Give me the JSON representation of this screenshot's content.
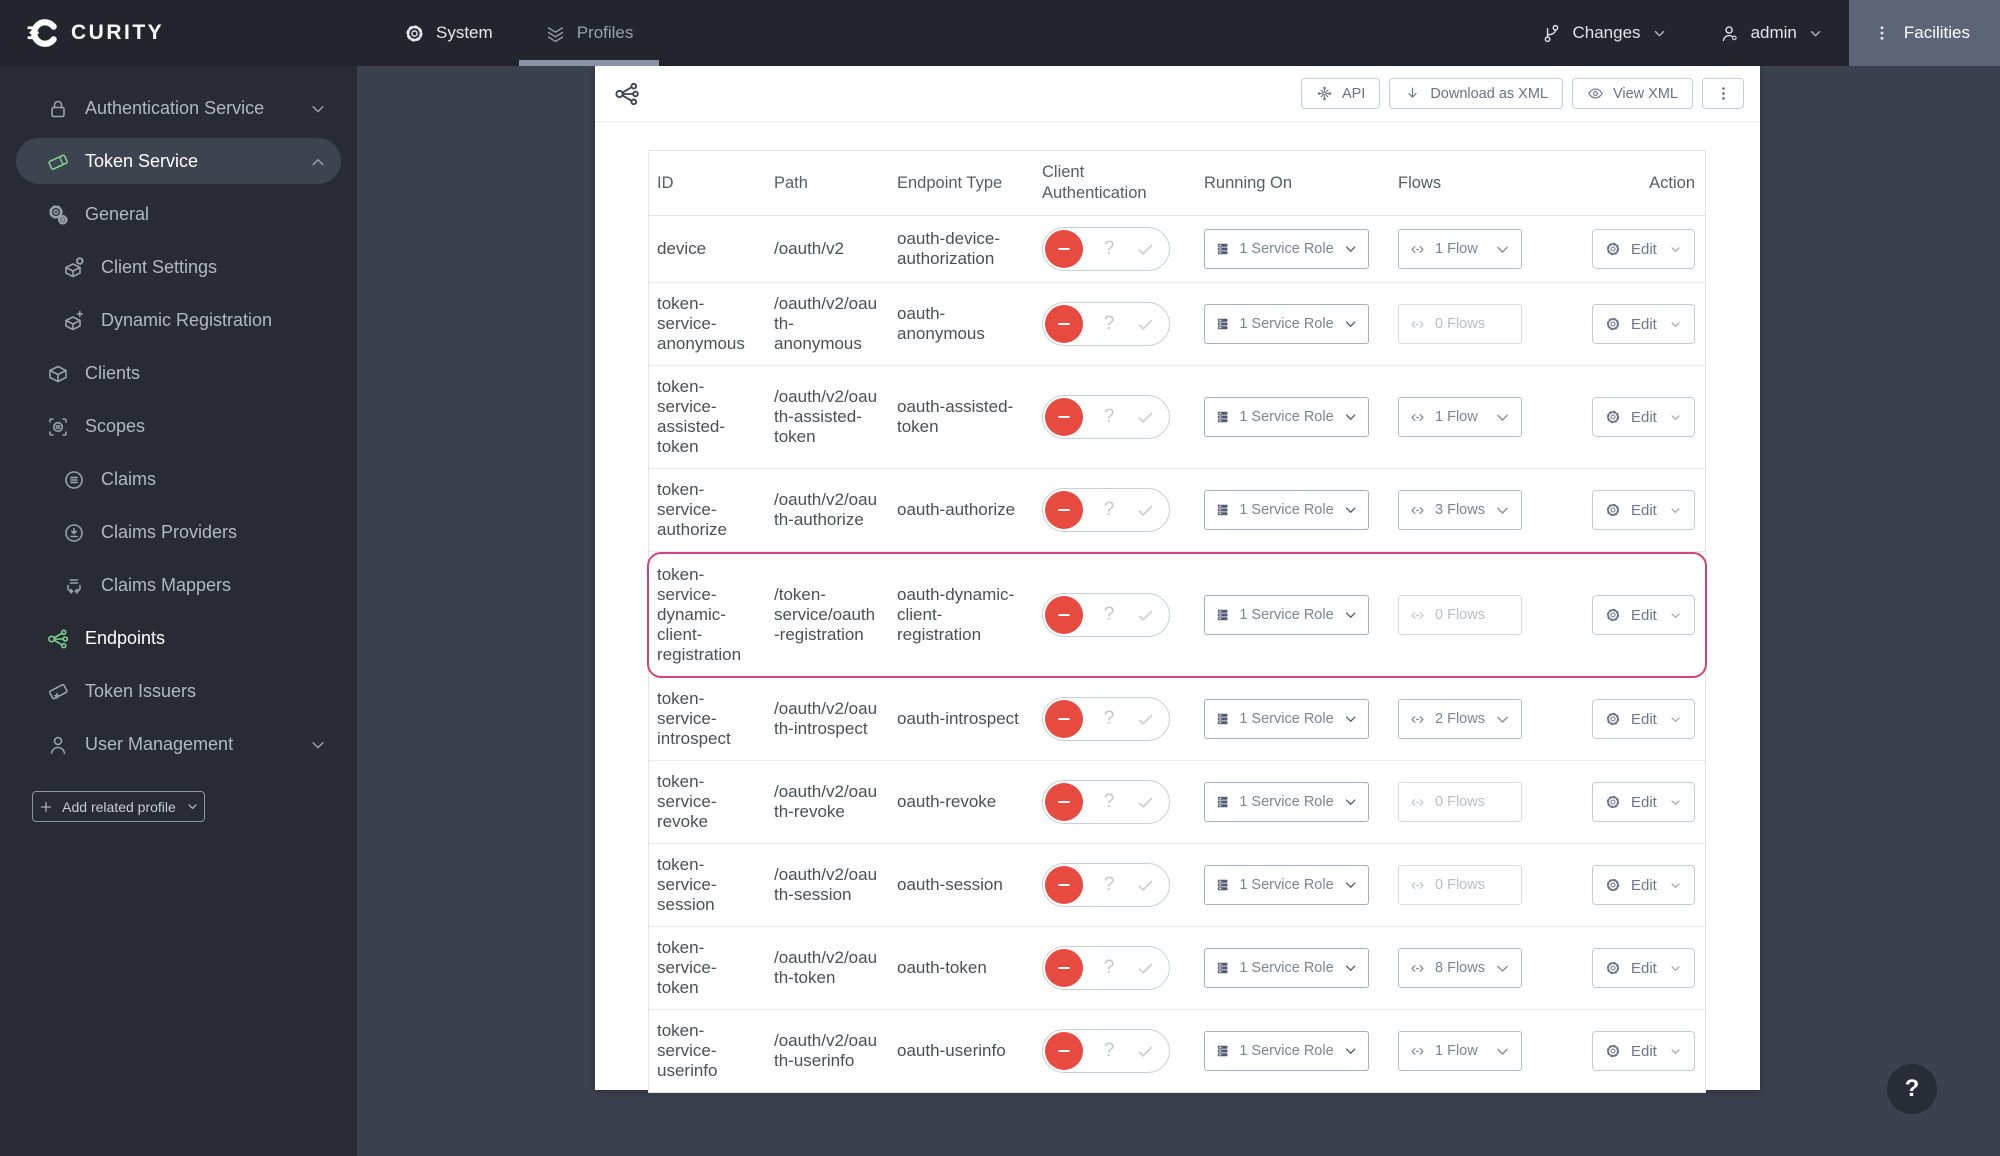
{
  "colors": {
    "topbar_bg": "#22252e",
    "sidebar_bg": "#282b34",
    "main_bg": "#3c4150",
    "facilities_bg": "#5c6476",
    "accent_green": "#7bd28f",
    "danger_red": "#e74b40",
    "highlight_pink": "#d0457e"
  },
  "topbar": {
    "logo_text": "CURITY",
    "nav": [
      {
        "label": "System",
        "icon": "gear-icon",
        "active": false
      },
      {
        "label": "Profiles",
        "icon": "profiles-icon",
        "active": true
      }
    ],
    "changes": {
      "label": "Changes",
      "icon": "git-branch-icon"
    },
    "user": {
      "label": "admin",
      "icon": "user-gear-icon"
    },
    "facilities": {
      "label": "Facilities",
      "icon": "kebab-icon"
    }
  },
  "sidebar": {
    "items": [
      {
        "label": "Authentication Service",
        "icon": "lock-icon",
        "indent": 0,
        "chevron": "down"
      },
      {
        "label": "Token Service",
        "icon": "ticket-icon",
        "icon_color": "green",
        "indent": 0,
        "chevron": "up",
        "active": true
      },
      {
        "label": "General",
        "icon": "gears-icon",
        "indent": 0
      },
      {
        "label": "Client Settings",
        "icon": "box-gear-icon",
        "indent": 1
      },
      {
        "label": "Dynamic Registration",
        "icon": "box-plus-icon",
        "indent": 1
      },
      {
        "label": "Clients",
        "icon": "box-icon",
        "indent": 0
      },
      {
        "label": "Scopes",
        "icon": "scopes-icon",
        "indent": 0
      },
      {
        "label": "Claims",
        "icon": "claims-icon",
        "indent": 1
      },
      {
        "label": "Claims Providers",
        "icon": "claims-providers-icon",
        "indent": 1
      },
      {
        "label": "Claims Mappers",
        "icon": "claims-mappers-icon",
        "indent": 1
      },
      {
        "label": "Endpoints",
        "icon": "endpoints-icon",
        "icon_color": "green",
        "indent": 0,
        "current": true
      },
      {
        "label": "Token Issuers",
        "icon": "ticket-plus-icon",
        "indent": 0
      },
      {
        "label": "User Management",
        "icon": "person-icon",
        "indent": 0,
        "chevron": "down"
      }
    ],
    "add_related_profile": {
      "label": "Add related profile",
      "icon": "plus-icon"
    }
  },
  "content": {
    "header_icon": "endpoints-icon",
    "actions": [
      {
        "label": "API",
        "icon": "api-icon"
      },
      {
        "label": "Download as XML",
        "icon": "download-icon"
      },
      {
        "label": "View XML",
        "icon": "eye-icon"
      },
      {
        "label": "",
        "icon": "kebab-icon"
      }
    ],
    "table": {
      "columns": [
        "ID",
        "Path",
        "Endpoint Type",
        "Client Authentication",
        "Running On",
        "Flows",
        "Action"
      ],
      "edit_label": "Edit",
      "client_auth": {
        "off_icon": "minus-icon",
        "unknown_label": "?",
        "on_icon": "check-icon"
      },
      "rows": [
        {
          "id": "device",
          "path": "/oauth/v2",
          "endpoint_type": "oauth-device-authorization",
          "client_auth": "off",
          "running_on": "1 Service Role",
          "flows": "1 Flow",
          "flows_active": true,
          "highlighted": false
        },
        {
          "id": "token-service-anonymous",
          "path": "/oauth/v2/oauth-anonymous",
          "endpoint_type": "oauth-anonymous",
          "client_auth": "off",
          "running_on": "1 Service Role",
          "flows": "0 Flows",
          "flows_active": false,
          "highlighted": false
        },
        {
          "id": "token-service-assisted-token",
          "path": "/oauth/v2/oauth-assisted-token",
          "endpoint_type": "oauth-assisted-token",
          "client_auth": "off",
          "running_on": "1 Service Role",
          "flows": "1 Flow",
          "flows_active": true,
          "highlighted": false
        },
        {
          "id": "token-service-authorize",
          "path": "/oauth/v2/oauth-authorize",
          "endpoint_type": "oauth-authorize",
          "client_auth": "off",
          "running_on": "1 Service Role",
          "flows": "3 Flows",
          "flows_active": true,
          "highlighted": false
        },
        {
          "id": "token-service-dynamic-client-registration",
          "path": "/token-service/oauth-registration",
          "endpoint_type": "oauth-dynamic-client-registration",
          "client_auth": "off",
          "running_on": "1 Service Role",
          "flows": "0 Flows",
          "flows_active": false,
          "highlighted": true
        },
        {
          "id": "token-service-introspect",
          "path": "/oauth/v2/oauth-introspect",
          "endpoint_type": "oauth-introspect",
          "client_auth": "off",
          "running_on": "1 Service Role",
          "flows": "2 Flows",
          "flows_active": true,
          "highlighted": false
        },
        {
          "id": "token-service-revoke",
          "path": "/oauth/v2/oauth-revoke",
          "endpoint_type": "oauth-revoke",
          "client_auth": "off",
          "running_on": "1 Service Role",
          "flows": "0 Flows",
          "flows_active": false,
          "highlighted": false
        },
        {
          "id": "token-service-session",
          "path": "/oauth/v2/oauth-session",
          "endpoint_type": "oauth-session",
          "client_auth": "off",
          "running_on": "1 Service Role",
          "flows": "0 Flows",
          "flows_active": false,
          "highlighted": false
        },
        {
          "id": "token-service-token",
          "path": "/oauth/v2/oauth-token",
          "endpoint_type": "oauth-token",
          "client_auth": "off",
          "running_on": "1 Service Role",
          "flows": "8 Flows",
          "flows_active": true,
          "highlighted": false
        },
        {
          "id": "token-service-userinfo",
          "path": "/oauth/v2/oauth-userinfo",
          "endpoint_type": "oauth-userinfo",
          "client_auth": "off",
          "running_on": "1 Service Role",
          "flows": "1 Flow",
          "flows_active": true,
          "highlighted": false
        }
      ]
    }
  },
  "help": {
    "label": "?"
  }
}
